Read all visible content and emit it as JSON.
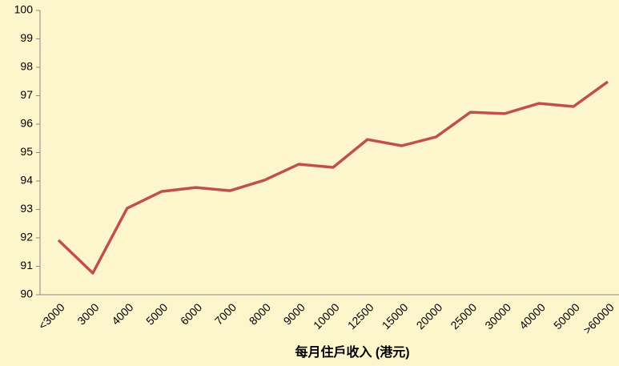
{
  "chart_data": {
    "type": "line",
    "x_label": "每月住戶收入 (港元)",
    "categories": [
      "<3000",
      "3000",
      "4000",
      "5000",
      "6000",
      "7000",
      "8000",
      "9000",
      "10000",
      "12500",
      "15000",
      "20000",
      "25000",
      "30000",
      "40000",
      "50000",
      ">60000"
    ],
    "values": [
      91.92,
      90.76,
      93.04,
      93.63,
      93.77,
      93.66,
      94.03,
      94.59,
      94.48,
      95.46,
      95.24,
      95.55,
      96.42,
      96.37,
      96.73,
      96.62,
      97.49
    ],
    "color": "#c0504d",
    "ylim": [
      90,
      100
    ],
    "yticks": [
      90,
      91,
      92,
      93,
      94,
      95,
      96,
      97,
      98,
      99,
      100
    ]
  }
}
